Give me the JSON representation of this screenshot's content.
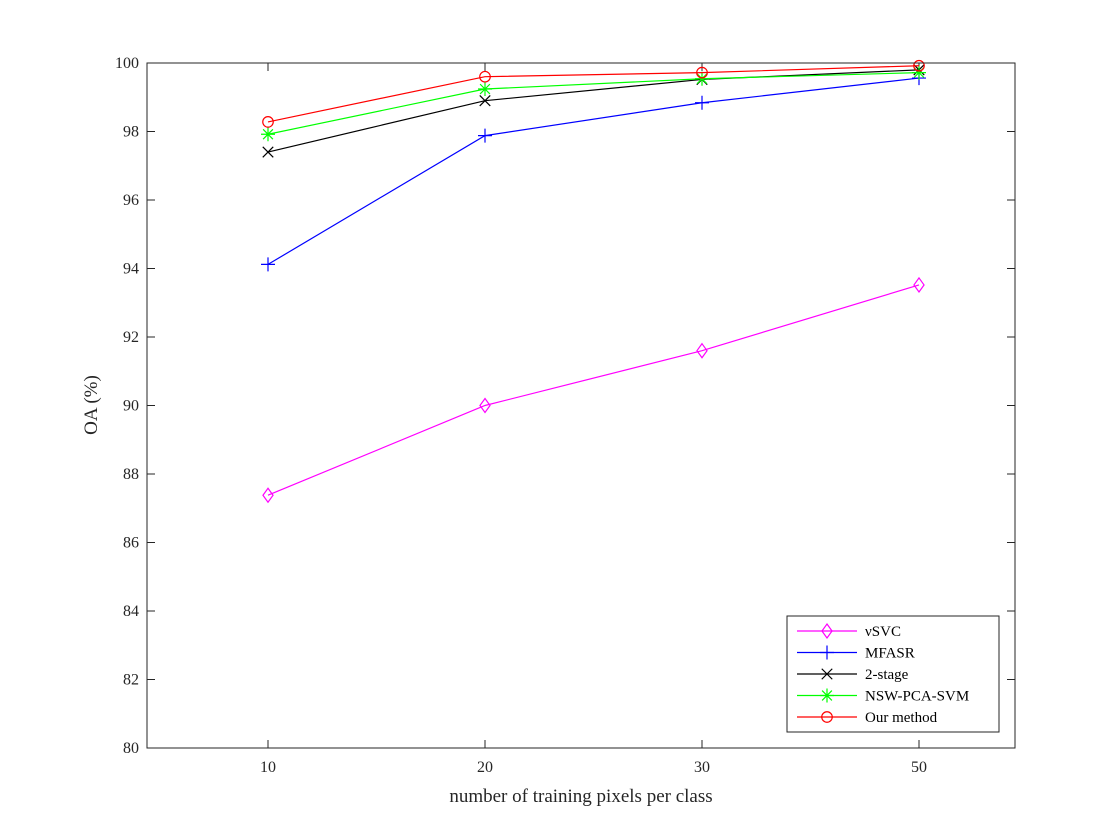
{
  "chart_data": {
    "type": "line",
    "title": "",
    "xlabel": "number of training pixels per class",
    "ylabel": "OA (%)",
    "categories": [
      "10",
      "20",
      "30",
      "50"
    ],
    "ylim": [
      80,
      100
    ],
    "yticks": [
      80,
      82,
      84,
      86,
      88,
      90,
      92,
      94,
      96,
      98,
      100
    ],
    "grid": false,
    "legend_position": "bottom-right",
    "series": [
      {
        "name": "νSVC",
        "color": "#ff00ff",
        "marker": "diamond",
        "values": [
          87.38,
          90.0,
          91.6,
          93.52
        ]
      },
      {
        "name": "MFASR",
        "color": "#0000ff",
        "marker": "plus",
        "values": [
          94.12,
          97.88,
          98.84,
          99.56
        ]
      },
      {
        "name": "2-stage",
        "color": "#000000",
        "marker": "x",
        "values": [
          97.4,
          98.9,
          99.52,
          99.8
        ]
      },
      {
        "name": "NSW-PCA-SVM",
        "color": "#00ff00",
        "marker": "asterisk",
        "values": [
          97.92,
          99.24,
          99.54,
          99.72
        ]
      },
      {
        "name": "Our method",
        "color": "#ff0000",
        "marker": "circle",
        "values": [
          98.28,
          99.6,
          99.72,
          99.92
        ]
      }
    ]
  }
}
